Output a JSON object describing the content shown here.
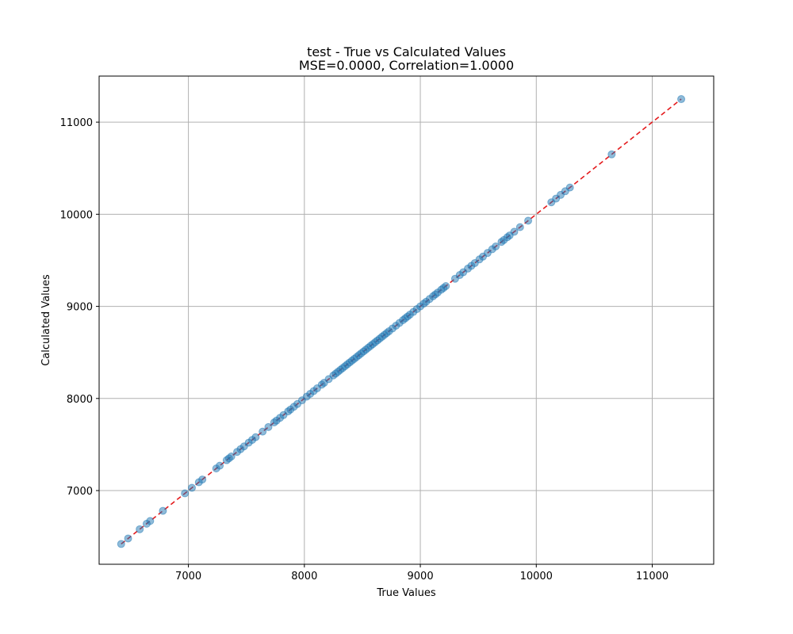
{
  "chart_data": {
    "type": "scatter",
    "title_line1": "test - True vs Calculated Values",
    "title_line2": "MSE=0.0000, Correlation=1.0000",
    "xlabel": "True Values",
    "ylabel": "Calculated Values",
    "xlim": [
      6230,
      11530
    ],
    "ylim": [
      6200,
      11500
    ],
    "xticks": [
      7000,
      8000,
      9000,
      10000,
      11000
    ],
    "yticks": [
      7000,
      8000,
      9000,
      10000,
      11000
    ],
    "grid": true,
    "point_color": "#1f77b4",
    "line_color": "#e41a1c",
    "reference_line": {
      "x": [
        6420,
        11250
      ],
      "y": [
        6420,
        11250
      ]
    },
    "x": [
      6420,
      6480,
      6580,
      6640,
      6670,
      6780,
      6970,
      7030,
      7090,
      7120,
      7240,
      7270,
      7330,
      7350,
      7370,
      7420,
      7450,
      7480,
      7520,
      7550,
      7580,
      7640,
      7690,
      7740,
      7760,
      7790,
      7820,
      7860,
      7880,
      7910,
      7940,
      7980,
      8020,
      8050,
      8080,
      8110,
      8150,
      8170,
      8210,
      8250,
      8270,
      8290,
      8310,
      8330,
      8350,
      8370,
      8390,
      8410,
      8430,
      8450,
      8470,
      8490,
      8510,
      8530,
      8550,
      8570,
      8590,
      8610,
      8630,
      8650,
      8670,
      8690,
      8710,
      8730,
      8760,
      8790,
      8820,
      8850,
      8870,
      8890,
      8910,
      8940,
      8970,
      9000,
      9030,
      9050,
      9080,
      9110,
      9130,
      9150,
      9180,
      9200,
      9220,
      9300,
      9340,
      9370,
      9410,
      9440,
      9470,
      9510,
      9540,
      9580,
      9620,
      9650,
      9700,
      9720,
      9750,
      9770,
      9810,
      9860,
      9930,
      10130,
      10170,
      10210,
      10250,
      10290,
      10650,
      11250
    ],
    "y": [
      6420,
      6480,
      6580,
      6640,
      6670,
      6780,
      6970,
      7030,
      7090,
      7120,
      7240,
      7270,
      7330,
      7350,
      7370,
      7420,
      7450,
      7480,
      7520,
      7550,
      7580,
      7640,
      7690,
      7740,
      7760,
      7790,
      7820,
      7860,
      7880,
      7910,
      7940,
      7980,
      8020,
      8050,
      8080,
      8110,
      8150,
      8170,
      8210,
      8250,
      8270,
      8290,
      8310,
      8330,
      8350,
      8370,
      8390,
      8410,
      8430,
      8450,
      8470,
      8490,
      8510,
      8530,
      8550,
      8570,
      8590,
      8610,
      8630,
      8650,
      8670,
      8690,
      8710,
      8730,
      8760,
      8790,
      8820,
      8850,
      8870,
      8890,
      8910,
      8940,
      8970,
      9000,
      9030,
      9050,
      9080,
      9110,
      9130,
      9150,
      9180,
      9200,
      9220,
      9300,
      9340,
      9370,
      9410,
      9440,
      9470,
      9510,
      9540,
      9580,
      9620,
      9650,
      9700,
      9720,
      9750,
      9770,
      9810,
      9860,
      9930,
      10130,
      10170,
      10210,
      10250,
      10290,
      10650,
      11250
    ]
  }
}
